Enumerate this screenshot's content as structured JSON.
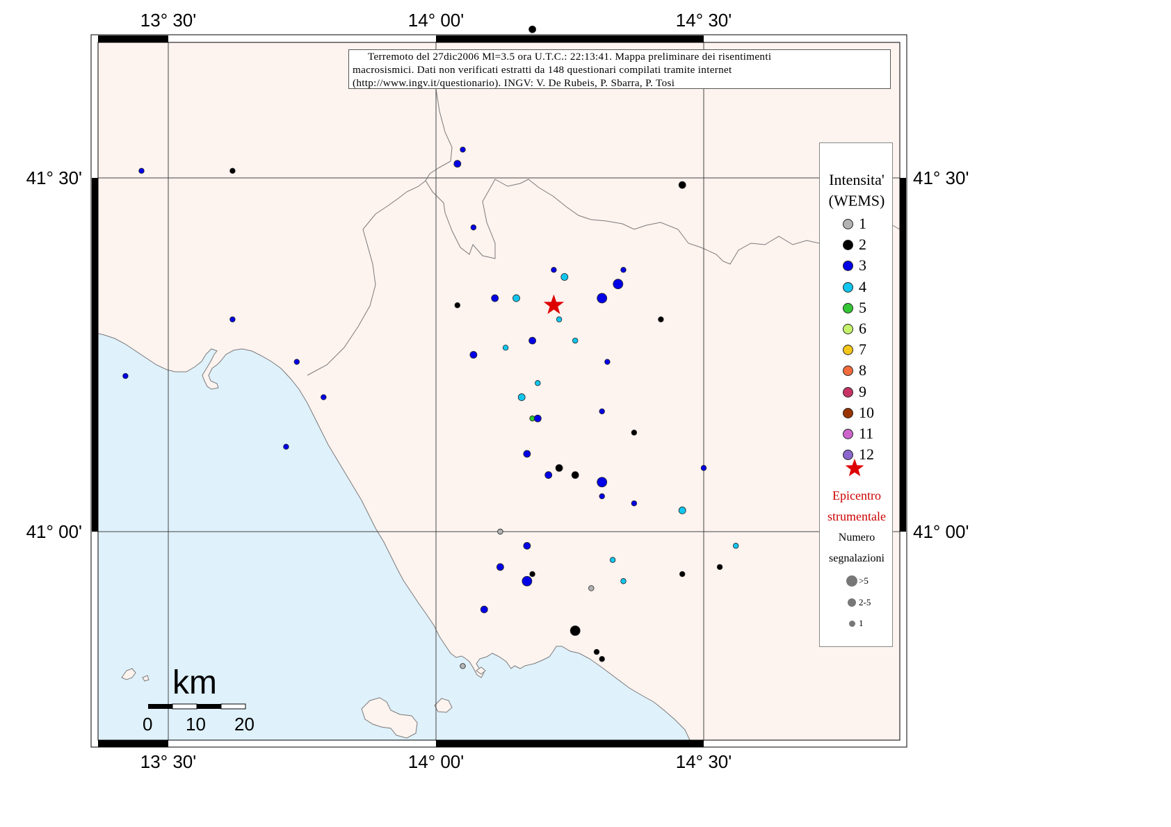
{
  "caption": {
    "line1": "Terremoto del 27dic2006 Ml=3.5 ora U.T.C.: 22:13:41.  Mappa preliminare dei risentimenti",
    "line2": "macrosismici.   Dati non verificati estratti da 148 questionari compilati tramite internet",
    "line3": "(http://www.ingv.it/questionario).   INGV: V.  De Rubeis, P.  Sbarra, P.  Tosi"
  },
  "axes": {
    "lon_ticks": [
      "13° 30'",
      "14° 00'",
      "14° 30'"
    ],
    "lat_ticks": [
      "41° 30'",
      "41° 00'"
    ]
  },
  "legend": {
    "title_line1": "Intensita'",
    "title_line2": "(WEMS)",
    "intensities": [
      {
        "label": "1",
        "color": "#b3b3b3"
      },
      {
        "label": "2",
        "color": "#000000"
      },
      {
        "label": "3",
        "color": "#0000e6"
      },
      {
        "label": "4",
        "color": "#11c6ee"
      },
      {
        "label": "5",
        "color": "#33c633"
      },
      {
        "label": "6",
        "color": "#c6f26b"
      },
      {
        "label": "7",
        "color": "#f2c61a"
      },
      {
        "label": "8",
        "color": "#f26b3d"
      },
      {
        "label": "9",
        "color": "#c63366"
      },
      {
        "label": "10",
        "color": "#993300"
      },
      {
        "label": "11",
        "color": "#cc66cc"
      },
      {
        "label": "12",
        "color": "#8866cc"
      }
    ],
    "epicenter_line1": "Epicentro",
    "epicenter_line2": "strumentale",
    "count_title_line1": "Numero",
    "count_title_line2": "segnalazioni",
    "count_sizes": [
      ">5",
      "2-5",
      "1"
    ]
  },
  "scale_bar": {
    "unit": "km",
    "labels": [
      "0",
      "10",
      "20"
    ]
  },
  "colors": {
    "sea": "#dff1fb",
    "land": "#fdf3ef",
    "epicenter": "#dd0000"
  },
  "map_data": {
    "epicenter": {
      "lon": 14.22,
      "lat": 41.32
    },
    "observations": [
      {
        "lon": 14.18,
        "lat": 41.71,
        "intensity": 2,
        "count": "2-5"
      },
      {
        "lon": 13.62,
        "lat": 41.51,
        "intensity": 2,
        "count": "1"
      },
      {
        "lon": 14.46,
        "lat": 41.49,
        "intensity": 2,
        "count": "2-5"
      },
      {
        "lon": 13.45,
        "lat": 41.51,
        "intensity": 3,
        "count": "1"
      },
      {
        "lon": 14.04,
        "lat": 41.52,
        "intensity": 3,
        "count": "2-5"
      },
      {
        "lon": 14.05,
        "lat": 41.54,
        "intensity": 3,
        "count": "1"
      },
      {
        "lon": 14.07,
        "lat": 41.43,
        "intensity": 3,
        "count": "1"
      },
      {
        "lon": 14.22,
        "lat": 41.37,
        "intensity": 3,
        "count": "1"
      },
      {
        "lon": 14.35,
        "lat": 41.37,
        "intensity": 3,
        "count": "1"
      },
      {
        "lon": 14.34,
        "lat": 41.35,
        "intensity": 3,
        "count": ">5"
      },
      {
        "lon": 14.24,
        "lat": 41.36,
        "intensity": 4,
        "count": "2-5"
      },
      {
        "lon": 14.11,
        "lat": 41.33,
        "intensity": 3,
        "count": "2-5"
      },
      {
        "lon": 14.15,
        "lat": 41.33,
        "intensity": 4,
        "count": "2-5"
      },
      {
        "lon": 14.31,
        "lat": 41.33,
        "intensity": 3,
        "count": ">5"
      },
      {
        "lon": 14.04,
        "lat": 41.32,
        "intensity": 2,
        "count": "1"
      },
      {
        "lon": 14.42,
        "lat": 41.3,
        "intensity": 2,
        "count": "1"
      },
      {
        "lon": 13.62,
        "lat": 41.3,
        "intensity": 3,
        "count": "1"
      },
      {
        "lon": 14.23,
        "lat": 41.3,
        "intensity": 4,
        "count": "1"
      },
      {
        "lon": 14.18,
        "lat": 41.27,
        "intensity": 3,
        "count": "2-5"
      },
      {
        "lon": 14.26,
        "lat": 41.27,
        "intensity": 4,
        "count": "1"
      },
      {
        "lon": 14.13,
        "lat": 41.26,
        "intensity": 4,
        "count": "1"
      },
      {
        "lon": 14.07,
        "lat": 41.25,
        "intensity": 3,
        "count": "2-5"
      },
      {
        "lon": 13.74,
        "lat": 41.24,
        "intensity": 3,
        "count": "1"
      },
      {
        "lon": 14.32,
        "lat": 41.24,
        "intensity": 3,
        "count": "1"
      },
      {
        "lon": 13.42,
        "lat": 41.22,
        "intensity": 3,
        "count": "1"
      },
      {
        "lon": 14.19,
        "lat": 41.21,
        "intensity": 4,
        "count": "1"
      },
      {
        "lon": 13.79,
        "lat": 41.19,
        "intensity": 3,
        "count": "1"
      },
      {
        "lon": 14.16,
        "lat": 41.19,
        "intensity": 4,
        "count": "2-5"
      },
      {
        "lon": 14.31,
        "lat": 41.17,
        "intensity": 3,
        "count": "1"
      },
      {
        "lon": 14.18,
        "lat": 41.16,
        "intensity": 5,
        "count": "1"
      },
      {
        "lon": 14.19,
        "lat": 41.16,
        "intensity": 3,
        "count": "2-5"
      },
      {
        "lon": 14.37,
        "lat": 41.14,
        "intensity": 2,
        "count": "1"
      },
      {
        "lon": 13.72,
        "lat": 41.12,
        "intensity": 3,
        "count": "1"
      },
      {
        "lon": 14.17,
        "lat": 41.11,
        "intensity": 3,
        "count": "2-5"
      },
      {
        "lon": 14.23,
        "lat": 41.09,
        "intensity": 2,
        "count": "2-5"
      },
      {
        "lon": 14.26,
        "lat": 41.08,
        "intensity": 2,
        "count": "2-5"
      },
      {
        "lon": 14.21,
        "lat": 41.08,
        "intensity": 3,
        "count": "2-5"
      },
      {
        "lon": 14.31,
        "lat": 41.07,
        "intensity": 3,
        "count": ">5"
      },
      {
        "lon": 14.5,
        "lat": 41.09,
        "intensity": 3,
        "count": "1"
      },
      {
        "lon": 14.31,
        "lat": 41.05,
        "intensity": 3,
        "count": "1"
      },
      {
        "lon": 14.37,
        "lat": 41.04,
        "intensity": 3,
        "count": "1"
      },
      {
        "lon": 14.46,
        "lat": 41.03,
        "intensity": 4,
        "count": "2-5"
      },
      {
        "lon": 14.12,
        "lat": 41.0,
        "intensity": 1,
        "count": "1"
      },
      {
        "lon": 14.17,
        "lat": 40.98,
        "intensity": 3,
        "count": "2-5"
      },
      {
        "lon": 14.56,
        "lat": 40.98,
        "intensity": 4,
        "count": "1"
      },
      {
        "lon": 14.33,
        "lat": 40.96,
        "intensity": 4,
        "count": "1"
      },
      {
        "lon": 14.12,
        "lat": 40.95,
        "intensity": 3,
        "count": "2-5"
      },
      {
        "lon": 14.18,
        "lat": 40.94,
        "intensity": 2,
        "count": "1"
      },
      {
        "lon": 14.46,
        "lat": 40.94,
        "intensity": 2,
        "count": "1"
      },
      {
        "lon": 14.53,
        "lat": 40.95,
        "intensity": 2,
        "count": "1"
      },
      {
        "lon": 14.17,
        "lat": 40.93,
        "intensity": 3,
        "count": ">5"
      },
      {
        "lon": 14.35,
        "lat": 40.93,
        "intensity": 4,
        "count": "1"
      },
      {
        "lon": 14.29,
        "lat": 40.92,
        "intensity": 1,
        "count": "1"
      },
      {
        "lon": 14.09,
        "lat": 40.89,
        "intensity": 3,
        "count": "2-5"
      },
      {
        "lon": 14.26,
        "lat": 40.86,
        "intensity": 2,
        "count": ">5"
      },
      {
        "lon": 14.3,
        "lat": 40.83,
        "intensity": 2,
        "count": "1"
      },
      {
        "lon": 14.31,
        "lat": 40.82,
        "intensity": 2,
        "count": "1"
      },
      {
        "lon": 14.05,
        "lat": 40.81,
        "intensity": 1,
        "count": "1"
      }
    ]
  }
}
